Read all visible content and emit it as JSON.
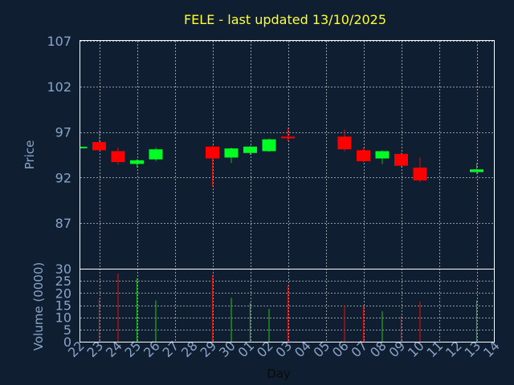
{
  "chart_data": {
    "type": "candlestick",
    "title": "FELE - last updated 13/10/2025",
    "xlabel": "Day",
    "price_panel": {
      "ylabel": "Price",
      "ylim": [
        82,
        107
      ],
      "yticks": [
        "107",
        "102",
        "97",
        "92",
        "87"
      ]
    },
    "volume_panel": {
      "ylabel": "Volume (0000)",
      "ylim": [
        0,
        30
      ],
      "yticks": [
        "30",
        "25",
        "20",
        "15",
        "10",
        "5",
        "0"
      ]
    },
    "x_labels": [
      "22",
      "23",
      "24",
      "25",
      "26",
      "27",
      "28",
      "29",
      "30",
      "01",
      "02",
      "03",
      "04",
      "05",
      "06",
      "07",
      "08",
      "09",
      "10",
      "11",
      "12",
      "13",
      "14"
    ],
    "x_lines": [
      "23",
      "25",
      "27",
      "29",
      "01",
      "03",
      "05",
      "07",
      "09",
      "11",
      "13"
    ],
    "candles": [
      {
        "day": "22",
        "open": 95.3,
        "close": 95.3,
        "high": 95.3,
        "low": 95.3,
        "volume": 0
      },
      {
        "day": "23",
        "open": 95.9,
        "close": 95.0,
        "high": 97.2,
        "low": 95.0,
        "volume": 17.5
      },
      {
        "day": "24",
        "open": 94.9,
        "close": 93.7,
        "high": 95.3,
        "low": 93.4,
        "volume": 28.0
      },
      {
        "day": "25",
        "open": 93.5,
        "close": 93.9,
        "high": 94.0,
        "low": 93.1,
        "volume": 26.0
      },
      {
        "day": "26",
        "open": 94.0,
        "close": 95.1,
        "high": 95.3,
        "low": 93.8,
        "volume": 17.0
      },
      {
        "day": "29",
        "open": 95.4,
        "close": 94.1,
        "high": 95.5,
        "low": 91.0,
        "volume": 27.5
      },
      {
        "day": "30",
        "open": 94.2,
        "close": 95.2,
        "high": 95.3,
        "low": 93.6,
        "volume": 18.0
      },
      {
        "day": "01",
        "open": 94.7,
        "close": 95.4,
        "high": 95.5,
        "low": 94.5,
        "volume": 16.0
      },
      {
        "day": "02",
        "open": 94.9,
        "close": 96.2,
        "high": 96.3,
        "low": 94.8,
        "volume": 13.5
      },
      {
        "day": "03",
        "open": 96.4,
        "close": 96.3,
        "high": 97.5,
        "low": 96.0,
        "volume": 23.0
      },
      {
        "day": "06",
        "open": 96.5,
        "close": 95.1,
        "high": 97.3,
        "low": 94.9,
        "volume": 15.0
      },
      {
        "day": "07",
        "open": 95.0,
        "close": 93.8,
        "high": 95.3,
        "low": 93.7,
        "volume": 14.5
      },
      {
        "day": "08",
        "open": 94.1,
        "close": 94.9,
        "high": 95.0,
        "low": 93.5,
        "volume": 12.5
      },
      {
        "day": "09",
        "open": 94.6,
        "close": 93.3,
        "high": 94.8,
        "low": 93.1,
        "volume": 10.5
      },
      {
        "day": "10",
        "open": 93.1,
        "close": 91.7,
        "high": 94.2,
        "low": 91.5,
        "volume": 16.5
      },
      {
        "day": "13",
        "open": 92.6,
        "close": 92.9,
        "high": 93.6,
        "low": 92.4,
        "volume": 17.0
      }
    ],
    "colors": {
      "up": "#00ff22",
      "down": "#ff0000",
      "up_wick": "#22aa22",
      "down_wick": "#cc1111",
      "frame": "#ffffff",
      "grid": "#ffffff"
    },
    "grid": true
  }
}
